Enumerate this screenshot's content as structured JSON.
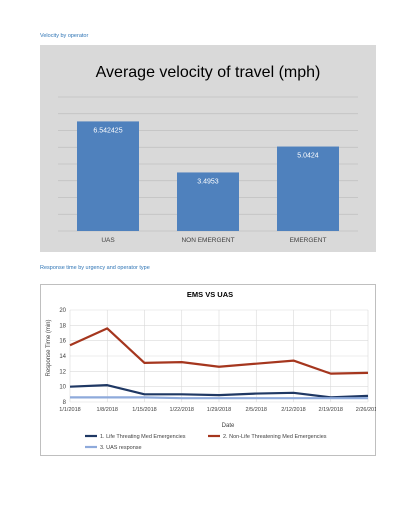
{
  "headings": {
    "velocity": "Velocity by operator",
    "response": "Response time by urgency and operator type"
  },
  "chart_data": [
    {
      "type": "bar",
      "title": "Average velocity of travel (mph)",
      "categories": [
        "UAS",
        "NON EMERGENT",
        "EMERGENT"
      ],
      "values": [
        6.542425,
        3.4953,
        5.0424
      ],
      "value_labels": [
        "6.542425",
        "3.4953",
        "5.0424"
      ],
      "ylim": [
        0,
        8
      ],
      "grid": true,
      "colors": {
        "bar": "#4f81bd",
        "background": "#d9d9d9",
        "grid": "#bfbfbf",
        "text": "#404040"
      }
    },
    {
      "type": "line",
      "title": "EMS VS UAS",
      "xlabel": "Date",
      "ylabel": "Response Time (min)",
      "x": [
        "1/1/2018",
        "1/8/2018",
        "1/15/2018",
        "1/22/2018",
        "1/29/2018",
        "2/5/2018",
        "2/12/2018",
        "2/19/2018",
        "2/26/2018"
      ],
      "yticks": [
        "8",
        "10",
        "12",
        "14",
        "16",
        "18",
        "20"
      ],
      "ylim": [
        8,
        20
      ],
      "grid": true,
      "legend": "bottom",
      "series": [
        {
          "name": "1. Life Threating Med Emergencies",
          "color": "#1f3864",
          "values": [
            10.0,
            10.2,
            9.0,
            9.0,
            8.9,
            9.1,
            9.2,
            8.6,
            8.8
          ]
        },
        {
          "name": "2. Non-Life Threatening Med Emergencies",
          "color": "#a5361e",
          "values": [
            15.4,
            17.6,
            13.1,
            13.2,
            12.6,
            13.0,
            13.4,
            11.7,
            11.8
          ]
        },
        {
          "name": "3. UAS response",
          "color": "#8eaadb",
          "values": [
            8.6,
            8.6,
            8.6,
            8.5,
            8.5,
            8.5,
            8.5,
            8.5,
            8.5
          ]
        }
      ]
    }
  ]
}
